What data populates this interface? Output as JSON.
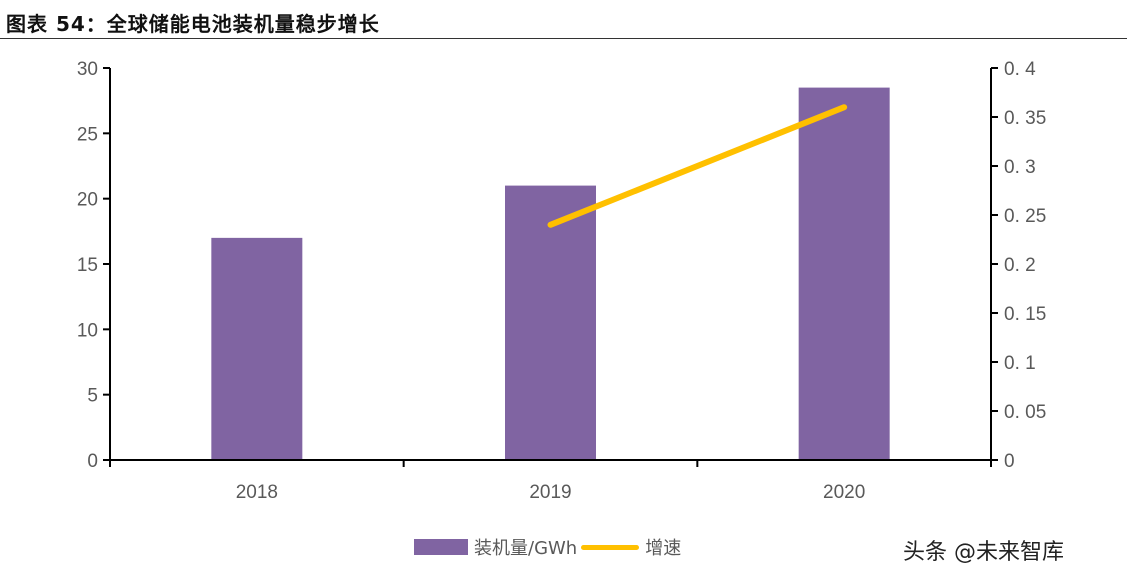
{
  "header": {
    "title": "图表 54：全球储能电池装机量稳步增长"
  },
  "watermark": "头条 @未来智库",
  "chart_data": {
    "type": "bar",
    "title": "图表 54：全球储能电池装机量稳步增长",
    "categories": [
      "2018",
      "2019",
      "2020"
    ],
    "series": [
      {
        "name": "装机量/GWh",
        "type": "bar",
        "axis": "left",
        "color": "#8064a2",
        "values": [
          17,
          21,
          28.5
        ]
      },
      {
        "name": "增速",
        "type": "line",
        "axis": "right",
        "color": "#ffc000",
        "values": [
          null,
          0.24,
          0.36
        ]
      }
    ],
    "y_left": {
      "range": [
        0,
        30
      ],
      "ticks": [
        "0",
        "5",
        "10",
        "15",
        "20",
        "25",
        "30"
      ],
      "tick_values": [
        0,
        5,
        10,
        15,
        20,
        25,
        30
      ]
    },
    "y_right": {
      "range": [
        0,
        0.4
      ],
      "ticks": [
        "0",
        "0. 05",
        "0. 1",
        "0. 15",
        "0. 2",
        "0. 25",
        "0. 3",
        "0. 35",
        "0. 4"
      ],
      "tick_values": [
        0,
        0.05,
        0.1,
        0.15,
        0.2,
        0.25,
        0.3,
        0.35,
        0.4
      ]
    },
    "xlabel": "",
    "ylabel": "",
    "grid": false,
    "legend": {
      "position": "bottom",
      "entries": [
        "装机量/GWh",
        "增速"
      ]
    }
  }
}
